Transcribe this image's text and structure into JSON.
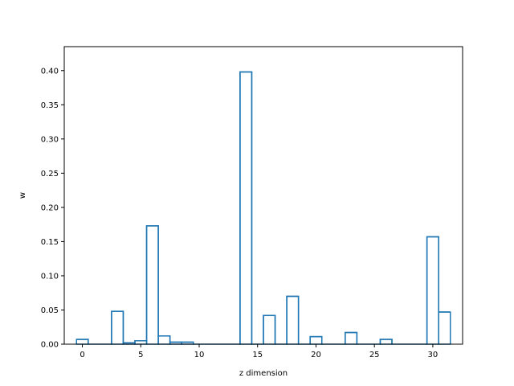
{
  "chart_data": {
    "type": "bar",
    "style": "step-histogram",
    "title": "",
    "xlabel": "z dimension",
    "ylabel": "w",
    "xlim": [
      -1.55,
      32.55
    ],
    "ylim": [
      0,
      0.435
    ],
    "grid": false,
    "legend": "none",
    "xticks": [
      0,
      5,
      10,
      15,
      20,
      25,
      30
    ],
    "yticks": [
      0.0,
      0.05,
      0.1,
      0.15,
      0.2,
      0.25,
      0.3,
      0.35,
      0.4
    ],
    "x": [
      0,
      1,
      2,
      3,
      4,
      5,
      6,
      7,
      8,
      9,
      10,
      11,
      12,
      13,
      14,
      15,
      16,
      17,
      18,
      19,
      20,
      21,
      22,
      23,
      24,
      25,
      26,
      27,
      28,
      29,
      30,
      31
    ],
    "values": [
      0.007,
      0.0,
      0.0,
      0.048,
      0.002,
      0.005,
      0.173,
      0.012,
      0.003,
      0.003,
      0.0,
      0.0,
      0.0,
      0.0,
      0.398,
      0.0,
      0.042,
      0.0,
      0.07,
      0.0,
      0.011,
      0.0,
      0.0,
      0.017,
      0.0,
      0.0,
      0.007,
      0.0,
      0.0,
      0.0,
      0.157,
      0.047
    ],
    "line_color": "#1f77b4"
  }
}
